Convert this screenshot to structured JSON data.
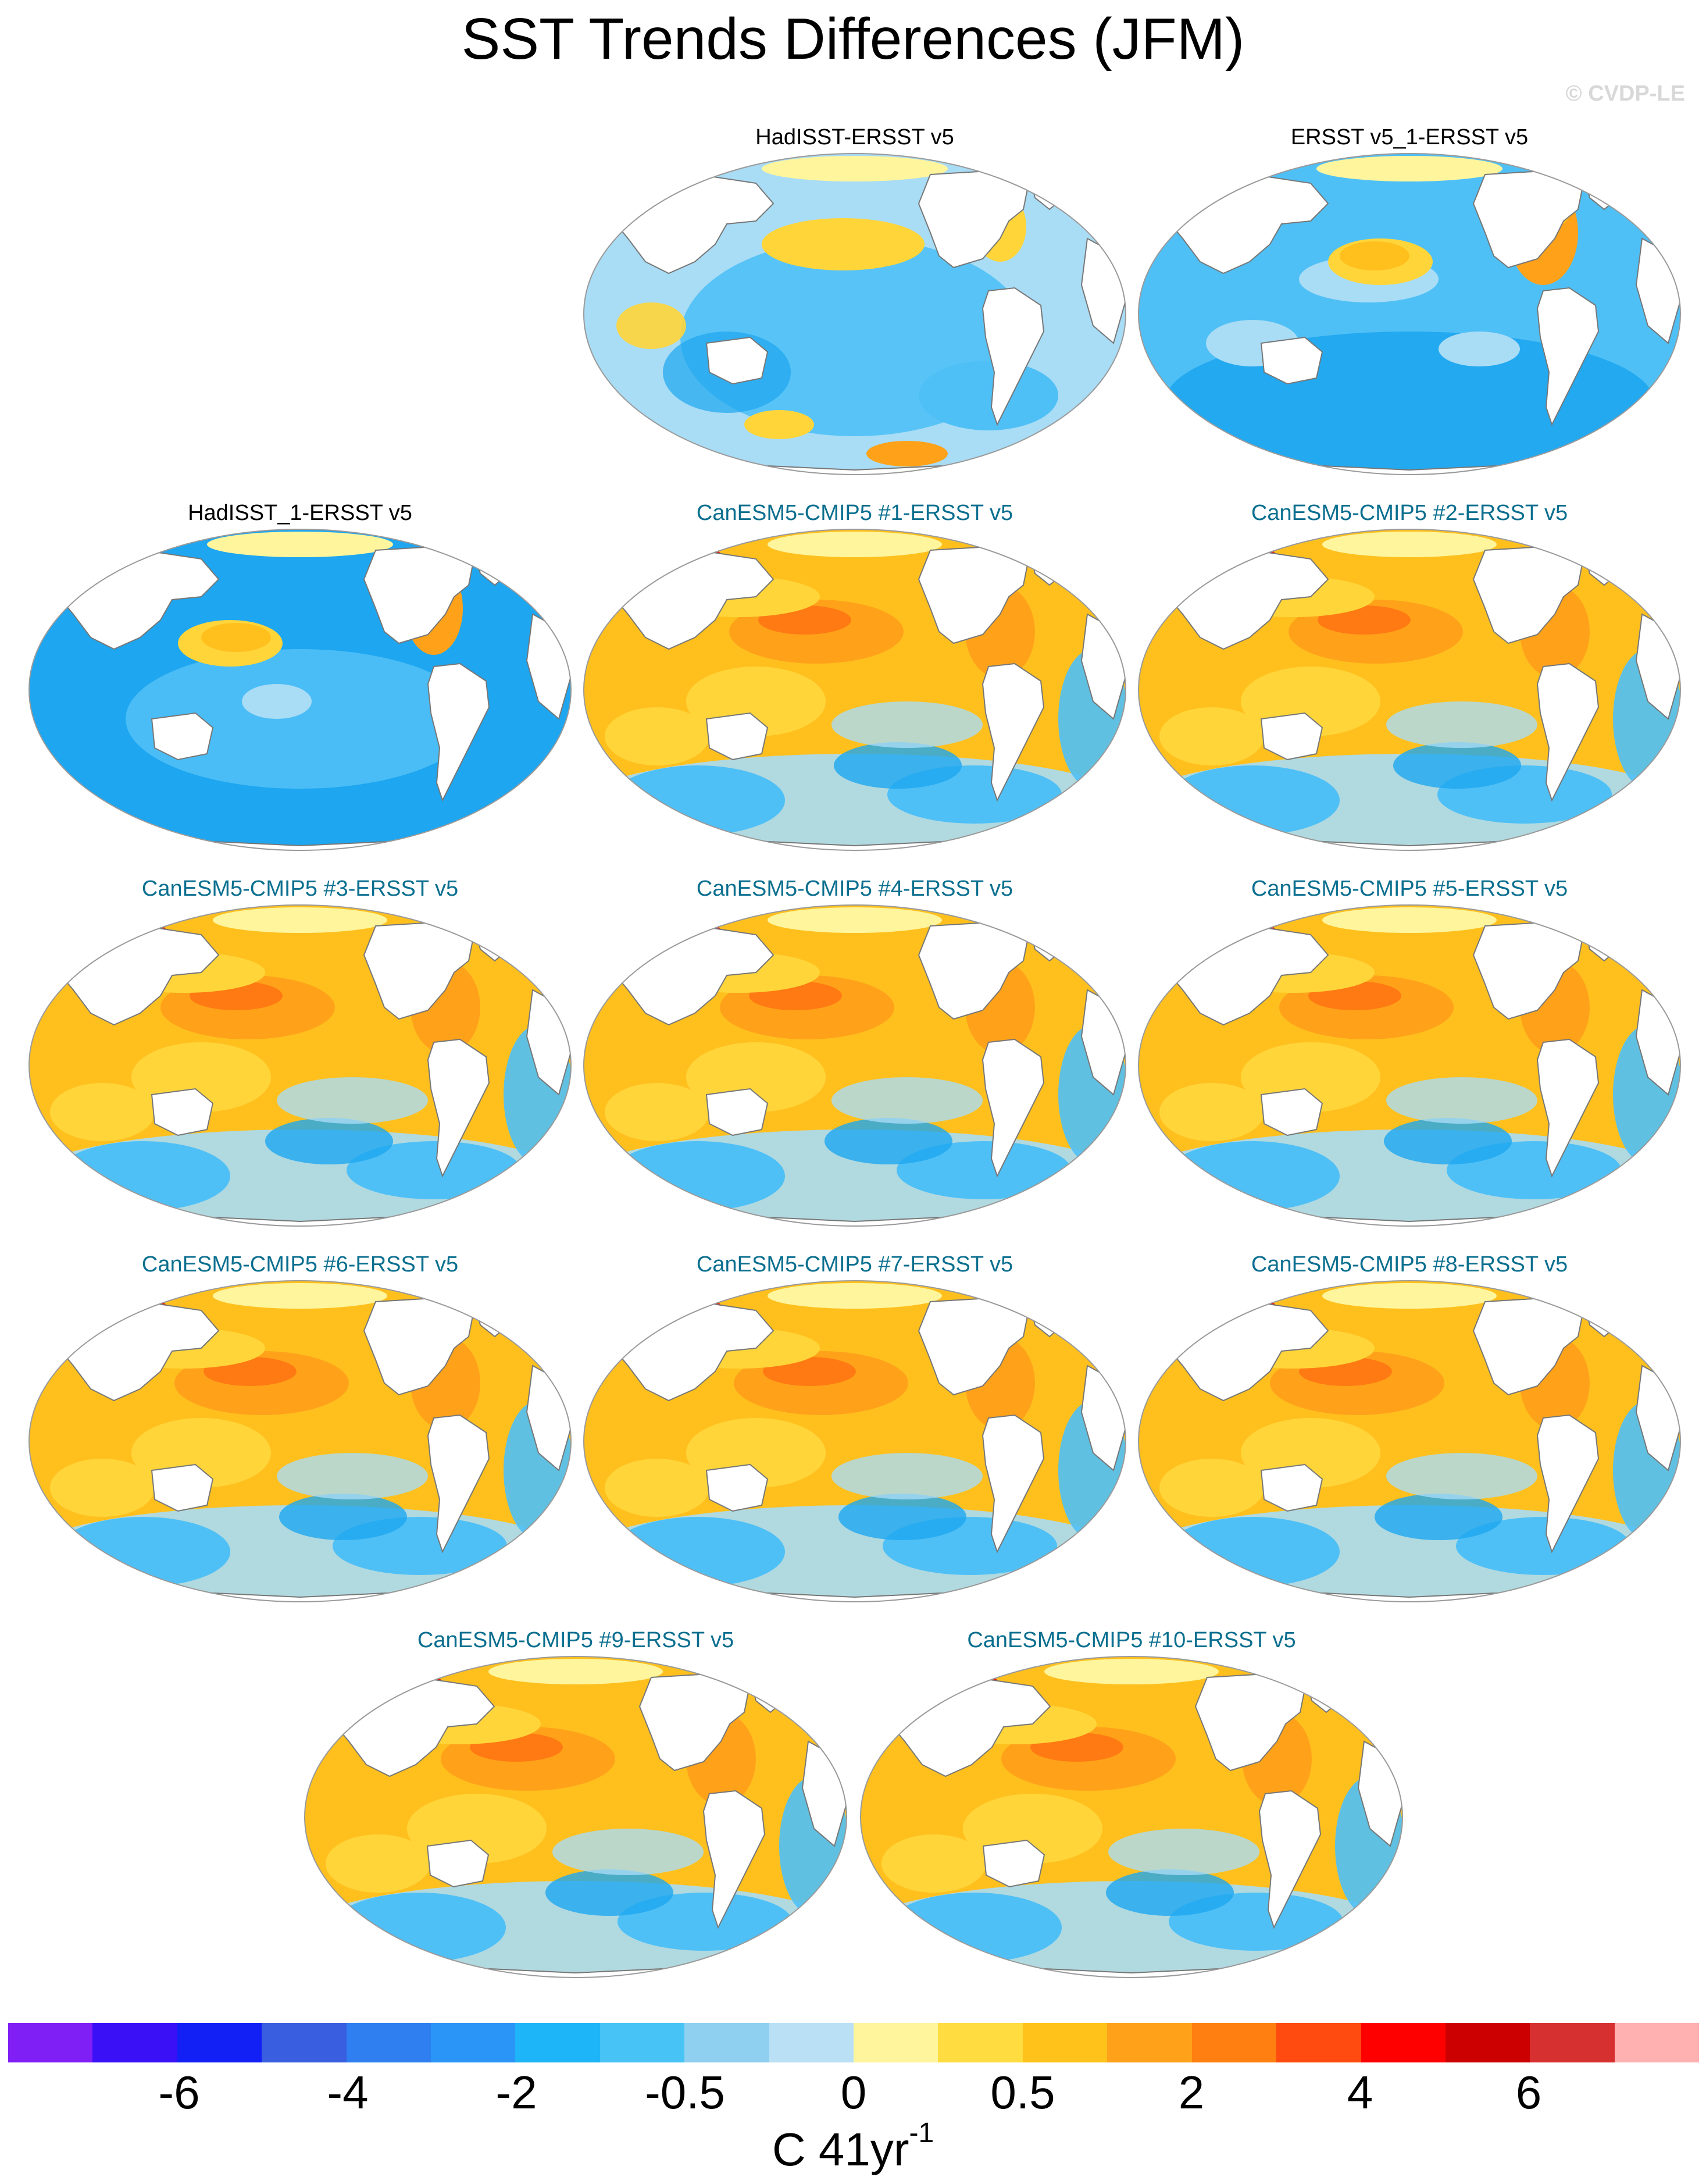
{
  "title": "SST Trends Differences (JFM)",
  "copyright": "© CVDP-LE",
  "panels": [
    {
      "title": "HadISST-ERSST v5",
      "title_color": "#000000",
      "pattern": "obs"
    },
    {
      "title": "ERSST v5_1-ERSST v5",
      "title_color": "#000000",
      "pattern": "obs2"
    },
    {
      "title": "HadISST_1-ERSST v5",
      "title_color": "#000000",
      "pattern": "obs3"
    },
    {
      "title": "CanESM5-CMIP5 #1-ERSST v5",
      "title_color": "#0b6f8f",
      "pattern": "model"
    },
    {
      "title": "CanESM5-CMIP5 #2-ERSST v5",
      "title_color": "#0b6f8f",
      "pattern": "model"
    },
    {
      "title": "CanESM5-CMIP5 #3-ERSST v5",
      "title_color": "#0b6f8f",
      "pattern": "model"
    },
    {
      "title": "CanESM5-CMIP5 #4-ERSST v5",
      "title_color": "#0b6f8f",
      "pattern": "model"
    },
    {
      "title": "CanESM5-CMIP5 #5-ERSST v5",
      "title_color": "#0b6f8f",
      "pattern": "model"
    },
    {
      "title": "CanESM5-CMIP5 #6-ERSST v5",
      "title_color": "#0b6f8f",
      "pattern": "model"
    },
    {
      "title": "CanESM5-CMIP5 #7-ERSST v5",
      "title_color": "#0b6f8f",
      "pattern": "model"
    },
    {
      "title": "CanESM5-CMIP5 #8-ERSST v5",
      "title_color": "#0b6f8f",
      "pattern": "model"
    },
    {
      "title": "CanESM5-CMIP5 #9-ERSST v5",
      "title_color": "#0b6f8f",
      "pattern": "model"
    },
    {
      "title": "CanESM5-CMIP5 #10-ERSST v5",
      "title_color": "#0b6f8f",
      "pattern": "model"
    }
  ],
  "colorbar": {
    "colors": [
      "#7f1ff5",
      "#3a10f7",
      "#1220f5",
      "#3a5ee0",
      "#2f7ff0",
      "#2a95f7",
      "#1eb4f8",
      "#48c3f5",
      "#8fd0f0",
      "#b9e0f5",
      "#fff59d",
      "#ffdc3f",
      "#ffc21a",
      "#ffa21a",
      "#ff7f10",
      "#ff4a10",
      "#ff0000",
      "#cc0000",
      "#d63030",
      "#ffb0b0"
    ],
    "labels": [
      "-6",
      "-4",
      "-2",
      "-0.5",
      "0",
      "0.5",
      "2",
      "4",
      "6"
    ],
    "units_main": "C 41yr",
    "units_sup": "-1"
  }
}
